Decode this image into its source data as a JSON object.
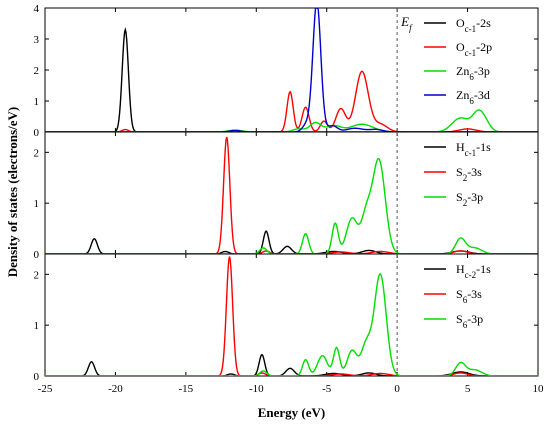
{
  "chart_data": {
    "type": "line",
    "xlabel": "Energy (eV)",
    "ylabel": "Density of states (electrons/eV)",
    "xlim": [
      -25,
      10
    ],
    "x_ticks": [
      -25,
      -20,
      -15,
      -10,
      -5,
      0,
      5,
      10
    ],
    "fermi_level": {
      "x": 0,
      "label": "E",
      "sub": "f"
    },
    "panels": [
      {
        "ylim": [
          0,
          4
        ],
        "y_ticks": [
          0,
          1,
          2,
          3,
          4
        ],
        "legend": "right",
        "series": [
          {
            "name": "O",
            "sub": "c-1",
            "suffix": "-2s",
            "color": "#000000",
            "peaks": [
              [
                -19.3,
                3.3,
                0.22
              ]
            ]
          },
          {
            "name": "O",
            "sub": "c-1",
            "suffix": "-2p",
            "color": "#ff0000",
            "peaks": [
              [
                -19.3,
                0.08,
                0.22
              ],
              [
                -7.6,
                1.3,
                0.22
              ],
              [
                -6.5,
                0.8,
                0.25
              ],
              [
                -5.2,
                0.35,
                0.25
              ],
              [
                -4.0,
                0.75,
                0.35
              ],
              [
                -2.5,
                1.95,
                0.45
              ],
              [
                -1.2,
                0.25,
                0.5
              ],
              [
                5.0,
                0.1,
                0.6
              ]
            ]
          },
          {
            "name": "Zn",
            "sub": "6",
            "suffix": "-3p",
            "color": "#00dd00",
            "peaks": [
              [
                -11.5,
                0.06,
                0.5
              ],
              [
                -7.0,
                0.1,
                0.4
              ],
              [
                -5.8,
                0.3,
                0.4
              ],
              [
                -4.5,
                0.2,
                0.5
              ],
              [
                -2.5,
                0.25,
                0.8
              ],
              [
                4.5,
                0.45,
                0.6
              ],
              [
                5.7,
                0.5,
                0.4
              ],
              [
                6.2,
                0.3,
                0.4
              ]
            ]
          },
          {
            "name": "Zn",
            "sub": "6",
            "suffix": "-3d",
            "color": "#0000cc",
            "peaks": [
              [
                -5.7,
                4.2,
                0.28
              ],
              [
                -6.4,
                0.25,
                0.3
              ],
              [
                -4.6,
                0.2,
                0.35
              ],
              [
                -3.0,
                0.12,
                0.6
              ],
              [
                -1.5,
                0.08,
                0.5
              ],
              [
                -11.5,
                0.05,
                0.4
              ]
            ]
          }
        ]
      },
      {
        "ylim": [
          0,
          2.4
        ],
        "y_ticks": [
          0,
          1,
          2
        ],
        "legend": "right",
        "series": [
          {
            "name": "H",
            "sub": "c-1",
            "suffix": "-1s",
            "color": "#000000",
            "peaks": [
              [
                -21.5,
                0.3,
                0.22
              ],
              [
                -12.2,
                0.05,
                0.25
              ],
              [
                -9.3,
                0.45,
                0.2
              ],
              [
                -7.8,
                0.15,
                0.3
              ],
              [
                -4.5,
                0.05,
                0.6
              ],
              [
                -2.0,
                0.07,
                0.5
              ],
              [
                4.5,
                0.06,
                0.6
              ]
            ]
          },
          {
            "name": "S",
            "sub": "2",
            "suffix": "-3s",
            "color": "#ff0000",
            "peaks": [
              [
                -12.1,
                2.3,
                0.22
              ],
              [
                -9.3,
                0.06,
                0.25
              ],
              [
                -4.0,
                0.04,
                0.6
              ],
              [
                -1.2,
                0.05,
                0.6
              ],
              [
                4.5,
                0.06,
                0.5
              ]
            ]
          },
          {
            "name": "S",
            "sub": "2",
            "suffix": "-3p",
            "color": "#00dd00",
            "peaks": [
              [
                -9.5,
                0.12,
                0.25
              ],
              [
                -6.5,
                0.4,
                0.22
              ],
              [
                -4.4,
                0.6,
                0.22
              ],
              [
                -3.2,
                0.7,
                0.4
              ],
              [
                -2.2,
                0.7,
                0.35
              ],
              [
                -1.3,
                1.85,
                0.45
              ],
              [
                4.5,
                0.3,
                0.35
              ],
              [
                5.5,
                0.12,
                0.5
              ]
            ]
          }
        ]
      },
      {
        "ylim": [
          0,
          2.4
        ],
        "y_ticks": [
          0,
          1,
          2
        ],
        "legend": "right",
        "series": [
          {
            "name": "H",
            "sub": "c-2",
            "suffix": "-1s",
            "color": "#000000",
            "peaks": [
              [
                -21.7,
                0.28,
                0.22
              ],
              [
                -11.8,
                0.04,
                0.25
              ],
              [
                -9.6,
                0.42,
                0.2
              ],
              [
                -7.6,
                0.15,
                0.3
              ],
              [
                -4.5,
                0.05,
                0.6
              ],
              [
                -2.0,
                0.06,
                0.5
              ],
              [
                4.5,
                0.08,
                0.6
              ]
            ]
          },
          {
            "name": "S",
            "sub": "6",
            "suffix": "-3s",
            "color": "#ff0000",
            "peaks": [
              [
                -11.9,
                2.35,
                0.22
              ],
              [
                -9.6,
                0.06,
                0.25
              ],
              [
                -4.0,
                0.04,
                0.6
              ],
              [
                -1.2,
                0.05,
                0.6
              ],
              [
                4.5,
                0.06,
                0.5
              ]
            ]
          },
          {
            "name": "S",
            "sub": "6",
            "suffix": "-3p",
            "color": "#00dd00",
            "peaks": [
              [
                -9.5,
                0.1,
                0.25
              ],
              [
                -6.5,
                0.32,
                0.22
              ],
              [
                -5.3,
                0.4,
                0.35
              ],
              [
                -4.3,
                0.55,
                0.22
              ],
              [
                -3.2,
                0.5,
                0.35
              ],
              [
                -2.2,
                0.6,
                0.35
              ],
              [
                -1.2,
                2.0,
                0.42
              ],
              [
                4.5,
                0.25,
                0.35
              ],
              [
                5.5,
                0.12,
                0.5
              ]
            ]
          }
        ]
      }
    ]
  }
}
